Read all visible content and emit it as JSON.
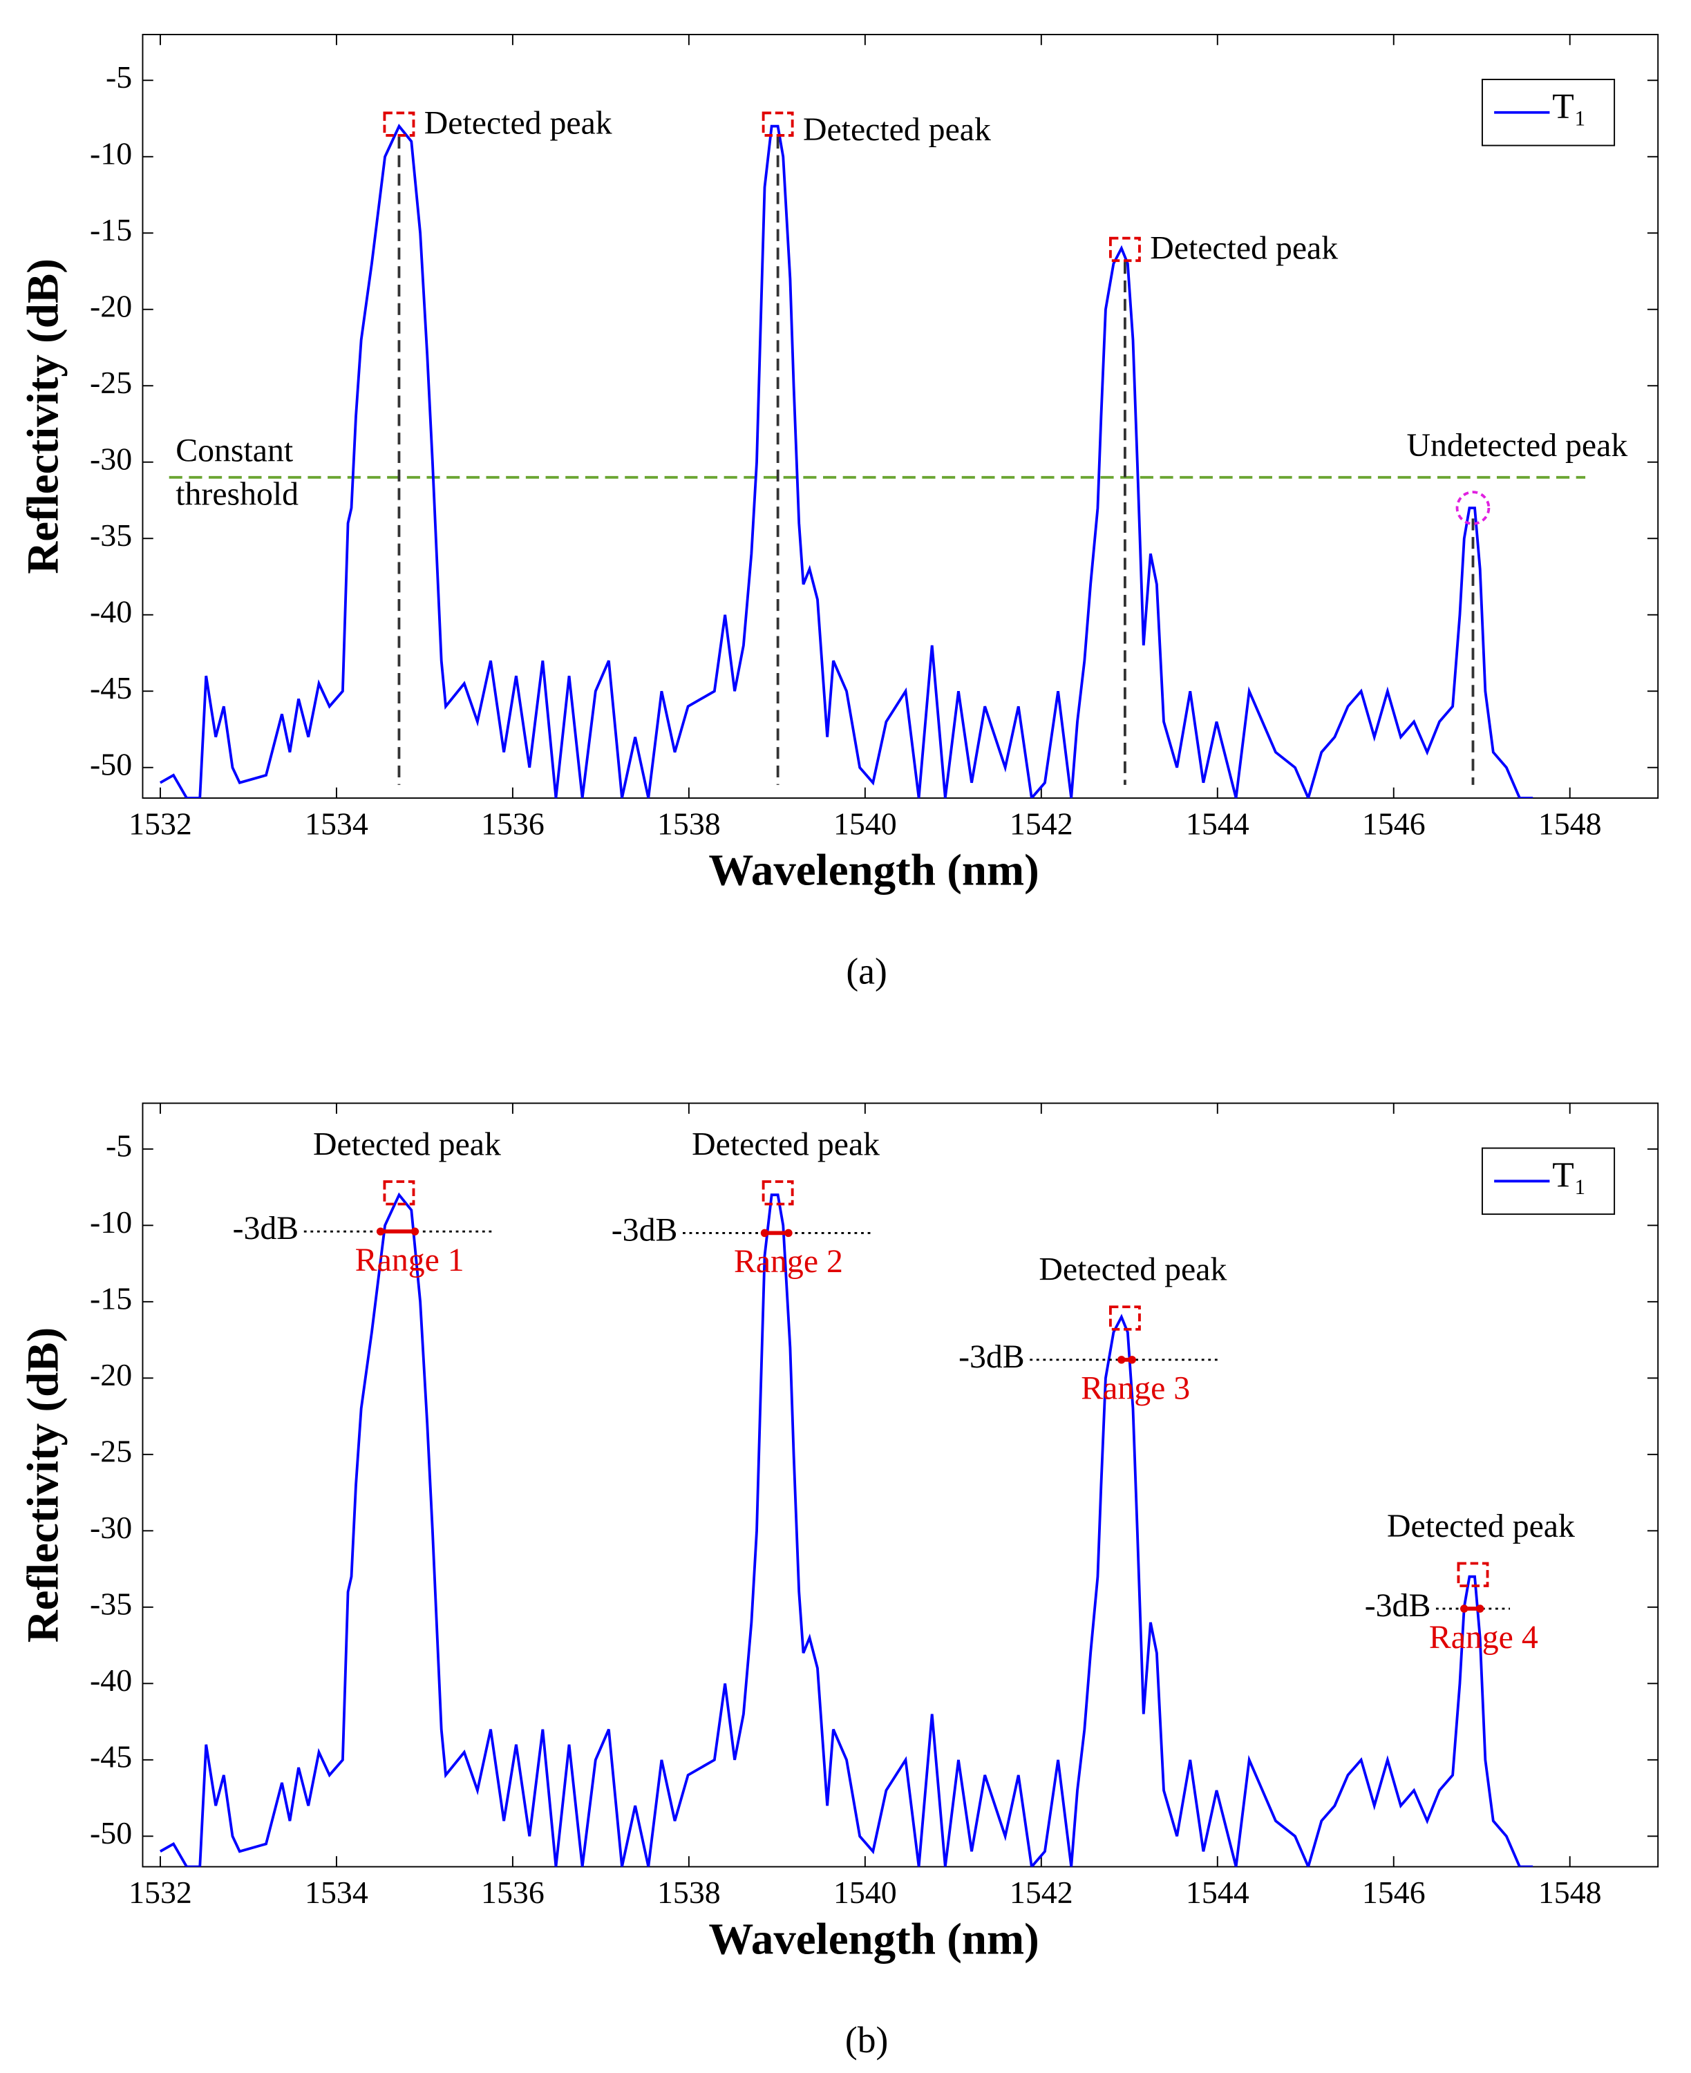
{
  "chart_data": [
    {
      "type": "line",
      "caption": "(a)",
      "xlabel": "Wavelength (nm)",
      "ylabel": "Reflectivity (dB)",
      "x": [
        1532.0,
        1532.15,
        1532.3,
        1532.45,
        1532.52,
        1532.63,
        1532.72,
        1532.82,
        1532.9,
        1533.2,
        1533.38,
        1533.47,
        1533.57,
        1533.68,
        1533.8,
        1533.92,
        1534.07,
        1534.13,
        1534.17,
        1534.22,
        1534.28,
        1534.4,
        1534.55,
        1534.71,
        1534.85,
        1534.95,
        1535.03,
        1535.09,
        1535.19,
        1535.24,
        1535.45,
        1535.6,
        1535.75,
        1535.9,
        1536.04,
        1536.19,
        1536.34,
        1536.49,
        1536.64,
        1536.79,
        1536.94,
        1537.09,
        1537.24,
        1537.39,
        1537.54,
        1537.69,
        1537.84,
        1537.99,
        1538.29,
        1538.41,
        1538.52,
        1538.62,
        1538.71,
        1538.77,
        1538.82,
        1538.86,
        1538.94,
        1539.01,
        1539.07,
        1539.15,
        1539.19,
        1539.25,
        1539.3,
        1539.37,
        1539.46,
        1539.57,
        1539.64,
        1539.79,
        1539.94,
        1540.09,
        1540.24,
        1540.46,
        1540.61,
        1540.76,
        1540.91,
        1541.06,
        1541.21,
        1541.36,
        1541.59,
        1541.74,
        1541.89,
        1542.04,
        1542.19,
        1542.34,
        1542.41,
        1542.49,
        1542.56,
        1542.64,
        1542.68,
        1542.73,
        1542.82,
        1542.91,
        1542.98,
        1543.04,
        1543.09,
        1543.16,
        1543.24,
        1543.31,
        1543.39,
        1543.54,
        1543.69,
        1543.84,
        1543.99,
        1544.21,
        1544.36,
        1544.51,
        1544.66,
        1544.88,
        1545.03,
        1545.18,
        1545.33,
        1545.48,
        1545.63,
        1545.78,
        1545.93,
        1546.08,
        1546.23,
        1546.38,
        1546.52,
        1546.67,
        1546.75,
        1546.8,
        1546.86,
        1546.92,
        1546.98,
        1547.04,
        1547.13,
        1547.28,
        1547.43,
        1547.58
      ],
      "series": [
        {
          "name": "T₁",
          "color": "#0000ff",
          "values": [
            -51,
            -50.5,
            -52,
            -52,
            -44,
            -48,
            -46,
            -50,
            -51,
            -50.5,
            -46.5,
            -49,
            -45.5,
            -48,
            -44.5,
            -46,
            -45,
            -34,
            -33,
            -27,
            -22,
            -17,
            -10,
            -8,
            -9,
            -15,
            -23,
            -30,
            -43,
            -46,
            -44.5,
            -47,
            -43,
            -49,
            -44,
            -50,
            -43,
            -52,
            -44,
            -52,
            -45,
            -43,
            -52,
            -48,
            -52,
            -45,
            -49,
            -46,
            -45,
            -40,
            -45,
            -42,
            -36,
            -30,
            -20,
            -12,
            -8,
            -8,
            -10,
            -18,
            -25,
            -34,
            -38,
            -37,
            -39,
            -48,
            -43,
            -45,
            -50,
            -51,
            -47,
            -45,
            -52,
            -42,
            -52,
            -45,
            -51,
            -46,
            -50,
            -46,
            -52,
            -51,
            -45,
            -52,
            -47,
            -43,
            -38,
            -33,
            -27,
            -20,
            -17,
            -16,
            -17,
            -22,
            -30,
            -42,
            -36,
            -38,
            -47,
            -50,
            -45,
            -51,
            -47,
            -52,
            -45,
            -47,
            -49,
            -50,
            -52,
            -49,
            -48,
            -46,
            -45,
            -48,
            -45,
            -48,
            -47,
            -49,
            -47,
            -46,
            -40,
            -35,
            -33,
            -33,
            -37,
            -45,
            -49,
            -50,
            -52,
            -52
          ]
        }
      ],
      "xlim": [
        1531.8,
        1549
      ],
      "ylim": [
        -52,
        -2
      ],
      "xticks": [
        1532,
        1534,
        1536,
        1538,
        1540,
        1542,
        1544,
        1546,
        1548
      ],
      "yticks": [
        -50,
        -45,
        -40,
        -35,
        -30,
        -25,
        -20,
        -15,
        -10,
        -5
      ],
      "legend": "upper right",
      "peaks": {
        "x": [
          1534.71,
          1539.01,
          1542.95,
          1546.9
        ],
        "y": [
          -8,
          -8,
          -16.2,
          -33
        ],
        "labels": [
          "Detected peak",
          "Detected peak",
          "Detected peak",
          "Undetected peak"
        ]
      },
      "threshold": {
        "value": -31,
        "label": [
          "Constant",
          "threshold"
        ],
        "color": "#6aa532"
      }
    },
    {
      "type": "line",
      "caption": "(b)",
      "xlabel": "Wavelength (nm)",
      "ylabel": "Reflectivity (dB)",
      "x": [
        1532.0,
        1532.15,
        1532.3,
        1532.45,
        1532.52,
        1532.63,
        1532.72,
        1532.82,
        1532.9,
        1533.2,
        1533.38,
        1533.47,
        1533.57,
        1533.68,
        1533.8,
        1533.92,
        1534.07,
        1534.13,
        1534.17,
        1534.22,
        1534.28,
        1534.4,
        1534.55,
        1534.71,
        1534.85,
        1534.95,
        1535.03,
        1535.09,
        1535.19,
        1535.24,
        1535.45,
        1535.6,
        1535.75,
        1535.9,
        1536.04,
        1536.19,
        1536.34,
        1536.49,
        1536.64,
        1536.79,
        1536.94,
        1537.09,
        1537.24,
        1537.39,
        1537.54,
        1537.69,
        1537.84,
        1537.99,
        1538.29,
        1538.41,
        1538.52,
        1538.62,
        1538.71,
        1538.77,
        1538.82,
        1538.86,
        1538.94,
        1539.01,
        1539.07,
        1539.15,
        1539.19,
        1539.25,
        1539.3,
        1539.37,
        1539.46,
        1539.57,
        1539.64,
        1539.79,
        1539.94,
        1540.09,
        1540.24,
        1540.46,
        1540.61,
        1540.76,
        1540.91,
        1541.06,
        1541.21,
        1541.36,
        1541.59,
        1541.74,
        1541.89,
        1542.04,
        1542.19,
        1542.34,
        1542.41,
        1542.49,
        1542.56,
        1542.64,
        1542.68,
        1542.73,
        1542.82,
        1542.91,
        1542.98,
        1543.04,
        1543.09,
        1543.16,
        1543.24,
        1543.31,
        1543.39,
        1543.54,
        1543.69,
        1543.84,
        1543.99,
        1544.21,
        1544.36,
        1544.51,
        1544.66,
        1544.88,
        1545.03,
        1545.18,
        1545.33,
        1545.48,
        1545.63,
        1545.78,
        1545.93,
        1546.08,
        1546.23,
        1546.38,
        1546.52,
        1546.67,
        1546.75,
        1546.8,
        1546.86,
        1546.92,
        1546.98,
        1547.04,
        1547.13,
        1547.28,
        1547.43,
        1547.58
      ],
      "series": [
        {
          "name": "T₁",
          "color": "#0000ff",
          "values": [
            -51,
            -50.5,
            -52,
            -52,
            -44,
            -48,
            -46,
            -50,
            -51,
            -50.5,
            -46.5,
            -49,
            -45.5,
            -48,
            -44.5,
            -46,
            -45,
            -34,
            -33,
            -27,
            -22,
            -17,
            -10,
            -8,
            -9,
            -15,
            -23,
            -30,
            -43,
            -46,
            -44.5,
            -47,
            -43,
            -49,
            -44,
            -50,
            -43,
            -52,
            -44,
            -52,
            -45,
            -43,
            -52,
            -48,
            -52,
            -45,
            -49,
            -46,
            -45,
            -40,
            -45,
            -42,
            -36,
            -30,
            -20,
            -12,
            -8,
            -8,
            -10,
            -18,
            -25,
            -34,
            -38,
            -37,
            -39,
            -48,
            -43,
            -45,
            -50,
            -51,
            -47,
            -45,
            -52,
            -42,
            -52,
            -45,
            -51,
            -46,
            -50,
            -46,
            -52,
            -51,
            -45,
            -52,
            -47,
            -43,
            -38,
            -33,
            -27,
            -20,
            -17,
            -16,
            -17,
            -22,
            -30,
            -42,
            -36,
            -38,
            -47,
            -50,
            -45,
            -51,
            -47,
            -52,
            -45,
            -47,
            -49,
            -50,
            -52,
            -49,
            -48,
            -46,
            -45,
            -48,
            -45,
            -48,
            -47,
            -49,
            -47,
            -46,
            -40,
            -35,
            -33,
            -33,
            -37,
            -45,
            -49,
            -50,
            -52,
            -52
          ]
        }
      ],
      "xlim": [
        1531.8,
        1549
      ],
      "ylim": [
        -52,
        -2
      ],
      "xticks": [
        1532,
        1534,
        1536,
        1538,
        1540,
        1542,
        1544,
        1546,
        1548
      ],
      "yticks": [
        -50,
        -45,
        -40,
        -35,
        -30,
        -25,
        -20,
        -15,
        -10,
        -5
      ],
      "legend": "upper right",
      "peaks": {
        "x": [
          1534.71,
          1539.01,
          1542.95,
          1546.9
        ],
        "y": [
          -8,
          -8,
          -16.2,
          -33
        ],
        "labels": [
          "Detected peak",
          "Detected peak",
          "Detected peak",
          "Detected peak"
        ]
      },
      "half_max": {
        "y": [
          -10.4,
          -10.5,
          -18.8,
          -35.1
        ],
        "labels": [
          "-3dB",
          "-3dB",
          "-3dB",
          "-3dB"
        ]
      },
      "ranges": {
        "x": [
          [
            1534.5,
            1534.89
          ],
          [
            1538.86,
            1539.13
          ],
          [
            1542.91,
            1543.03
          ],
          [
            1546.8,
            1546.98
          ]
        ],
        "labels": [
          "Range 1",
          "Range 2",
          "Range 3",
          "Range 4"
        ]
      }
    }
  ]
}
